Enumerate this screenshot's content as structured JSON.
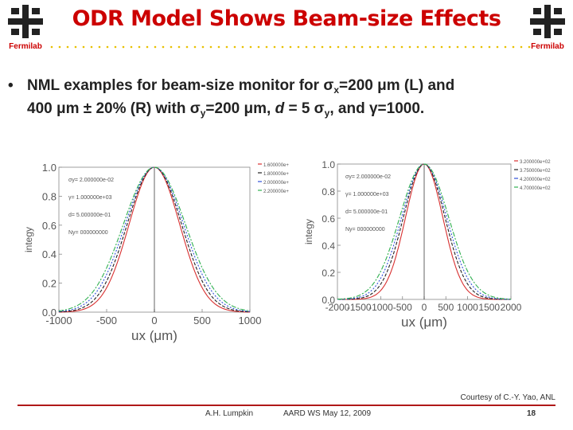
{
  "slide": {
    "title": "ODR Model Shows Beam-size Effects",
    "logo_label": "Fermilab",
    "bullet": {
      "dot": "•",
      "line1_part1": "NML examples for beam-size monitor for σ",
      "line1_sub1": "x",
      "line1_part2": "=200 μm (L) and",
      "line2_part1": "400 μm ± 20%  (R) with σ",
      "line2_sub1": "y",
      "line2_part2": "=200 μm, ",
      "line2_italic_d": "d",
      "line2_part3": " = 5 σ",
      "line2_sub2": "y",
      "line2_part4": ", and γ=1000."
    },
    "courtesy": "Courtesy of C.-Y. Yao, ANL",
    "footer": {
      "author": "A.H. Lumpkin",
      "event": "AARD WS  May 12, 2009",
      "page": "18"
    }
  },
  "colors": {
    "title": "#cc0000",
    "footer_line": "#b01818",
    "curve_red": "#d83030",
    "curve_black": "#222222",
    "curve_blue": "#3050d8",
    "curve_green": "#30b050"
  },
  "chart_data": [
    {
      "type": "line",
      "title": "",
      "xlabel": "ux  (μm)",
      "ylabel": "integy",
      "xlim": [
        -1000,
        1000
      ],
      "ylim": [
        0,
        1.0
      ],
      "x_ticks": [
        "-1000",
        "-500",
        "0",
        "500",
        "1000"
      ],
      "y_ticks": [
        "0.0",
        "0.2",
        "0.4",
        "0.6",
        "0.8",
        "1.0"
      ],
      "annotations": [
        "σy= 2.000000e-02",
        "γ= 1.000000e+03",
        "d= 5.000000e-01",
        "Ny= 000000000"
      ],
      "legend": [
        "1.600000e+",
        "1.800000e+",
        "2.000000e+",
        "2.200000e+"
      ],
      "legend_position": "top-right outside",
      "series": [
        {
          "values": [
            0.0,
            0.0,
            0.02,
            0.13,
            0.45,
            0.85,
            1.0,
            0.85,
            0.45,
            0.13,
            0.02,
            0.0,
            0.0
          ],
          "sigma": 265
        },
        {
          "values": [
            0.0,
            0.0,
            0.03,
            0.17,
            0.5,
            0.87,
            1.0,
            0.87,
            0.5,
            0.17,
            0.03,
            0.0,
            0.0
          ],
          "sigma": 285
        },
        {
          "values": [
            0.0,
            0.01,
            0.05,
            0.2,
            0.54,
            0.89,
            1.0,
            0.89,
            0.54,
            0.2,
            0.05,
            0.01,
            0.0
          ],
          "sigma": 305
        },
        {
          "values": [
            0.0,
            0.01,
            0.06,
            0.24,
            0.58,
            0.9,
            1.0,
            0.9,
            0.58,
            0.24,
            0.06,
            0.01,
            0.0
          ],
          "sigma": 325
        }
      ],
      "x": [
        -1000,
        -800,
        -600,
        -400,
        -250,
        -100,
        0,
        100,
        250,
        400,
        600,
        800,
        1000
      ]
    },
    {
      "type": "line",
      "title": "",
      "xlabel": "ux  (μm)",
      "ylabel": "integy",
      "xlim": [
        -2000,
        2000
      ],
      "ylim": [
        0,
        1.0
      ],
      "x_ticks": [
        "-2000",
        "-1500",
        "-1000",
        "-500",
        "0",
        "500",
        "1000",
        "1500",
        "2000"
      ],
      "y_ticks": [
        "0.0",
        "0.2",
        "0.4",
        "0.6",
        "0.8",
        "1.0"
      ],
      "annotations": [
        "σy= 2.000000e-02",
        "γ= 1.000000e+03",
        "d= 5.000000e-01",
        "Ny= 000000000"
      ],
      "legend": [
        "3.200000e+02",
        "3.750000e+02",
        "4.200000e+02",
        "4.700000e+02"
      ],
      "legend_position": "top-right outside",
      "series": [
        {
          "sigma": 430
        },
        {
          "sigma": 480
        },
        {
          "sigma": 520
        },
        {
          "sigma": 565
        }
      ]
    }
  ]
}
